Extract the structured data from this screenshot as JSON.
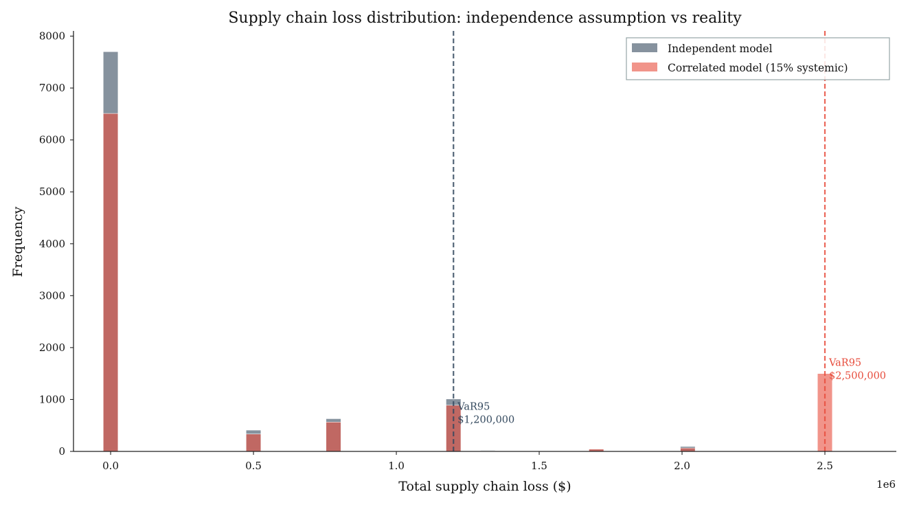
{
  "chart_data": {
    "type": "bar",
    "title": "Supply chain loss distribution: independence assumption vs reality",
    "xlabel": "Total supply chain loss ($)",
    "ylabel": "Frequency",
    "x_offset_label": "1e6",
    "xlim": [
      -0.13,
      2.75
    ],
    "ylim": [
      0,
      8100
    ],
    "xticks": [
      0.0,
      0.5,
      1.0,
      1.5,
      2.0,
      2.5
    ],
    "xtick_labels": [
      "0.0",
      "0.5",
      "1.0",
      "1.5",
      "2.0",
      "2.5"
    ],
    "yticks": [
      0,
      1000,
      2000,
      3000,
      4000,
      5000,
      6000,
      7000,
      8000
    ],
    "ytick_labels": [
      "0",
      "1000",
      "2000",
      "3000",
      "4000",
      "5000",
      "6000",
      "7000",
      "8000"
    ],
    "grid": false,
    "legend_position": "top-right",
    "bin_width": 0.052,
    "series": [
      {
        "name": "Independent model",
        "color": "#5d6d7e",
        "bins": [
          {
            "x": 0.0,
            "value": 7700
          },
          {
            "x": 0.5,
            "value": 410
          },
          {
            "x": 0.78,
            "value": 630
          },
          {
            "x": 1.2,
            "value": 1010
          },
          {
            "x": 1.32,
            "value": 20
          },
          {
            "x": 1.7,
            "value": 40
          },
          {
            "x": 2.02,
            "value": 95
          }
        ]
      },
      {
        "name": "Correlated model (15% systemic)",
        "color": "#e74c3c",
        "bins": [
          {
            "x": 0.0,
            "value": 6510
          },
          {
            "x": 0.5,
            "value": 335
          },
          {
            "x": 0.78,
            "value": 565
          },
          {
            "x": 1.2,
            "value": 890
          },
          {
            "x": 1.32,
            "value": 10
          },
          {
            "x": 1.7,
            "value": 45
          },
          {
            "x": 2.02,
            "value": 65
          },
          {
            "x": 2.5,
            "value": 1500
          }
        ]
      }
    ],
    "var_lines": [
      {
        "x": 1.2,
        "color": "#34495e",
        "label_line1": "VaR95",
        "label_line2": "$1,200,000",
        "label_y": 800
      },
      {
        "x": 2.5,
        "color": "#e74c3c",
        "label_line1": "VaR95",
        "label_line2": "$2,500,000",
        "label_y": 1650
      }
    ]
  }
}
